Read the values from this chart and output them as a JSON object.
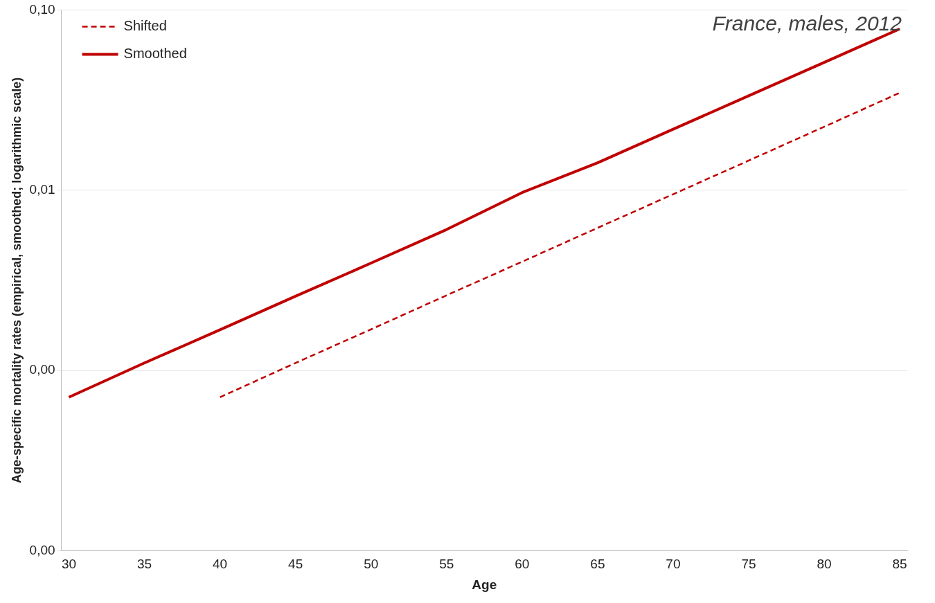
{
  "chart_data": {
    "type": "line",
    "xlabel": "Age",
    "ylabel": "Age-specific mortality rates (empirical, smoothed; logarithmic scale)",
    "annotations": [
      "France, males, 2012"
    ],
    "log": "y",
    "grid": "y",
    "legend": "top left",
    "marker": "none",
    "xlim": [
      29.5,
      85.5
    ],
    "xticks": [
      30,
      35,
      40,
      45,
      50,
      55,
      60,
      65,
      70,
      75,
      80,
      85
    ],
    "ylim": [
      0.0001,
      0.1
    ],
    "yticks": [
      {
        "value": 0.0001,
        "label": "0,00"
      },
      {
        "value": 0.001,
        "label": "0,00"
      },
      {
        "value": 0.01,
        "label": "0,01"
      },
      {
        "value": 0.1,
        "label": "0,10"
      }
    ],
    "series": [
      {
        "name": "Shifted",
        "color": "#c00000",
        "line_style": "dashed",
        "x": [
          40,
          45,
          50,
          55,
          60,
          65,
          70,
          75,
          80,
          85
        ],
        "values": [
          0.00071,
          0.0011,
          0.00169,
          0.00261,
          0.00401,
          0.00618,
          0.0095,
          0.0146,
          0.0225,
          0.0347
        ]
      },
      {
        "name": "Smoothed",
        "color": "#c00000",
        "line_style": "solid",
        "x": [
          30,
          35,
          40,
          45,
          50,
          55,
          60,
          65,
          70,
          75,
          80,
          85
        ],
        "values": [
          0.00071,
          0.0011,
          0.00168,
          0.00258,
          0.00394,
          0.00605,
          0.0097,
          0.0142,
          0.0218,
          0.0334,
          0.0512,
          0.0785
        ]
      }
    ]
  }
}
